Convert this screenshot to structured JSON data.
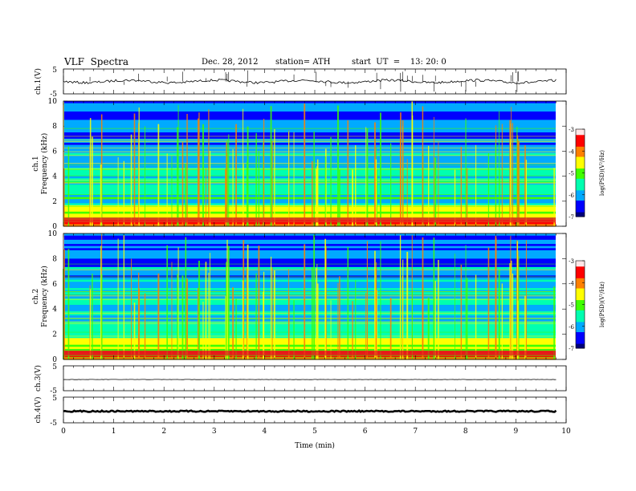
{
  "header": {
    "title": "VLF  Spectra",
    "date": "Dec. 28, 2012",
    "station": "station= ATH",
    "start": "start  UT  =    13: 20: 0"
  },
  "chart_data": {
    "type": "heatmap",
    "xlabel": "Time  (min)",
    "xlim": [
      0,
      10
    ],
    "x_ticks": [
      "0",
      "1",
      "2",
      "3",
      "4",
      "5",
      "6",
      "7",
      "8",
      "9",
      "10"
    ],
    "panels": [
      {
        "kind": "waveform",
        "ylabel": "ch.1(V)",
        "ylim": [
          -5,
          5
        ],
        "y_ticks": [
          "5",
          "-5"
        ],
        "level": 0
      },
      {
        "kind": "spectrogram",
        "ylabel_top": "ch.1",
        "ylabel": "Frequency  (kHz)",
        "ylim": [
          0,
          10
        ],
        "y_ticks": [
          "0",
          "2",
          "4",
          "6",
          "8",
          "10"
        ]
      },
      {
        "kind": "spectrogram",
        "ylabel_top": "ch.2",
        "ylabel": "Frequency  (kHz)",
        "ylim": [
          0,
          10
        ],
        "y_ticks": [
          "0",
          "2",
          "4",
          "6",
          "8",
          "10"
        ]
      },
      {
        "kind": "waveform",
        "ylabel": "ch.3(V)",
        "ylim": [
          -5,
          5
        ],
        "y_ticks": [
          "5",
          "-5"
        ],
        "level": -0.5
      },
      {
        "kind": "waveform",
        "ylabel": "ch.4(V)",
        "ylim": [
          -5,
          5
        ],
        "y_ticks": [
          "5",
          "-5"
        ],
        "level": -0.5
      }
    ],
    "colorbar": {
      "label": "log(PSD)(V²/Hz)",
      "range": [
        -7,
        -3
      ],
      "ticks": [
        "-3",
        "-4",
        "-5",
        "-6",
        "-7"
      ],
      "colors": [
        "#00007a",
        "#0000ff",
        "#00aaff",
        "#00ffb0",
        "#40ff00",
        "#ffff00",
        "#ff8000",
        "#ff0000",
        "#ffe6e6"
      ]
    },
    "colors": {
      "waveform": "#000000",
      "frame": "#000000"
    }
  }
}
